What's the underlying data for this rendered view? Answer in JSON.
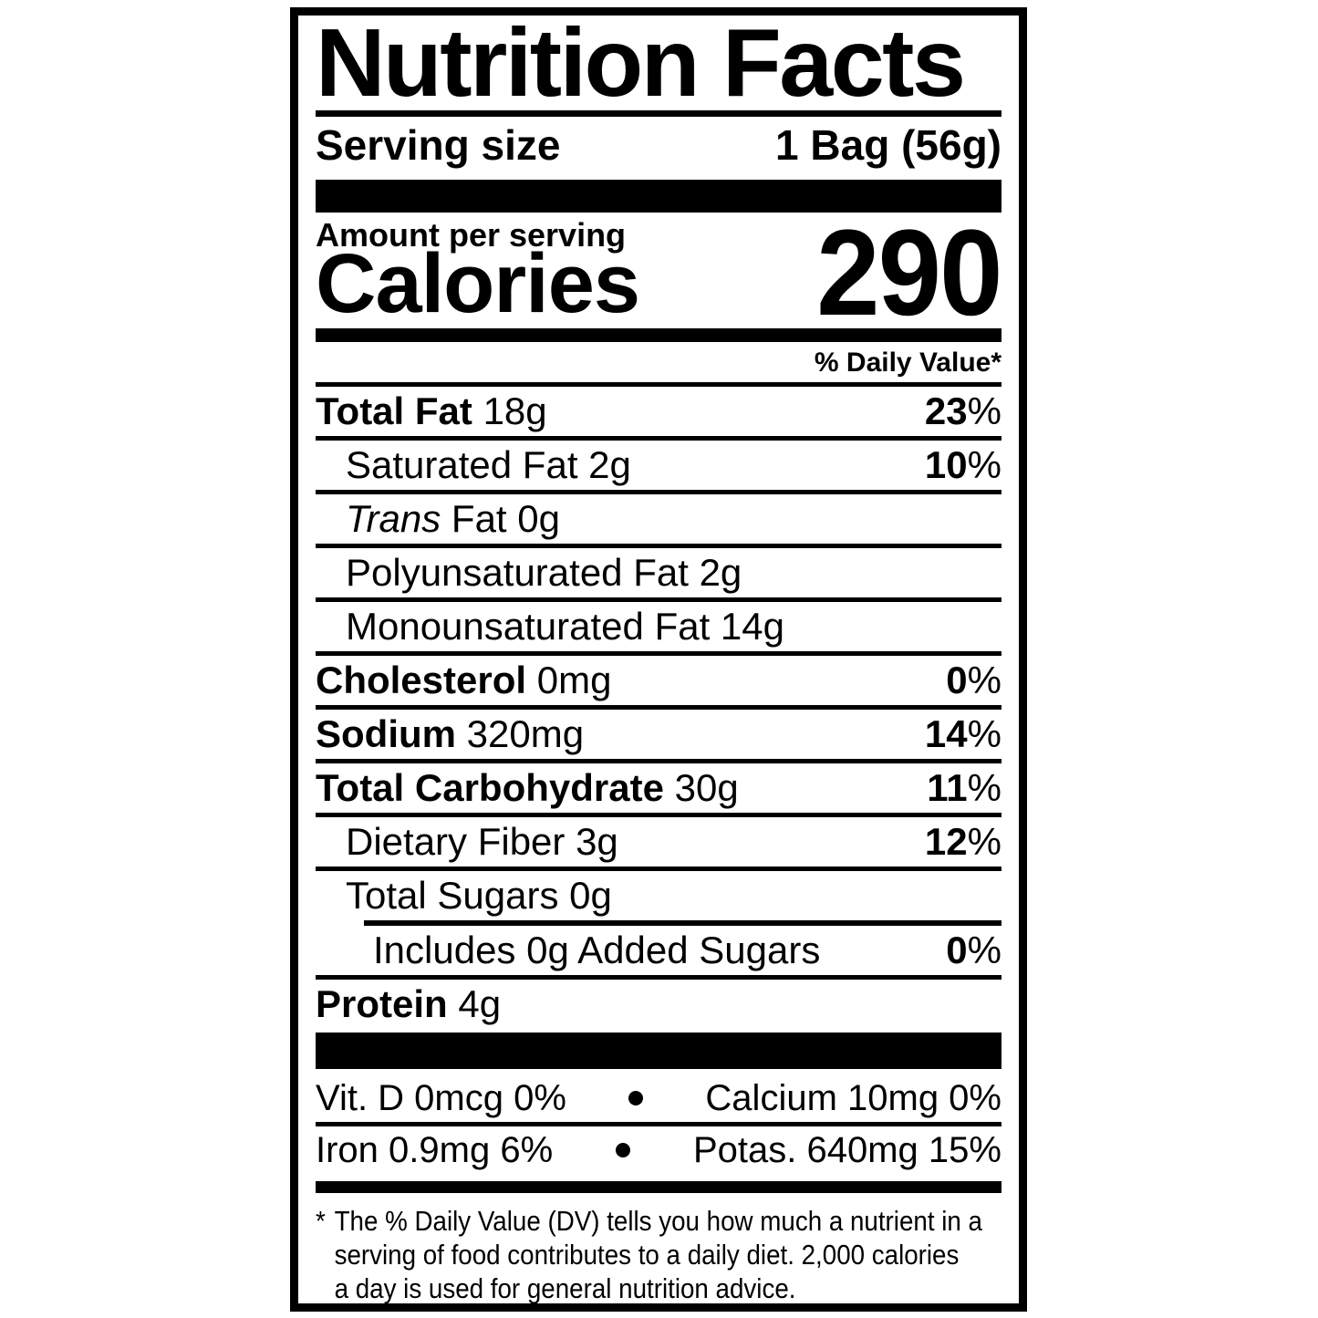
{
  "title": "Nutrition Facts",
  "serving": {
    "label": "Serving size",
    "value": "1 Bag (56g)"
  },
  "calories": {
    "context": "Amount per serving",
    "label": "Calories",
    "value": "290"
  },
  "daily_value_header": "% Daily Value*",
  "strings": {
    "percent": "%"
  },
  "nutrients": [
    {
      "name": "Total Fat",
      "amount": "18g",
      "dv": "23"
    },
    {
      "name": "Saturated Fat",
      "amount": "2g",
      "dv": "10"
    },
    {
      "name": "Trans",
      "amount": "Fat 0g"
    },
    {
      "name": "Polyunsaturated Fat",
      "amount": "2g"
    },
    {
      "name": "Monounsaturated Fat",
      "amount": "14g"
    },
    {
      "name": "Cholesterol",
      "amount": "0mg",
      "dv": "0"
    },
    {
      "name": "Sodium",
      "amount": "320mg",
      "dv": "14"
    },
    {
      "name": "Total Carbohydrate",
      "amount": "30g",
      "dv": "11"
    },
    {
      "name": "Dietary Fiber",
      "amount": "3g",
      "dv": "12"
    },
    {
      "name": "Total Sugars",
      "amount": "0g"
    },
    {
      "name": "Includes 0g Added Sugars",
      "amount": "",
      "dv": "0"
    },
    {
      "name": "Protein",
      "amount": "4g"
    }
  ],
  "micronutrients": [
    {
      "left": "Vit. D 0mcg 0%",
      "right": "Calcium 10mg 0%"
    },
    {
      "left": "Iron 0.9mg 6%",
      "right": "Potas. 640mg 15%"
    }
  ],
  "footnote": {
    "asterisk": "*",
    "lines": [
      "The % Daily Value (DV) tells you how much a nutrient in a",
      "serving of food contributes to a daily diet. 2,000 calories",
      "a day is used for general nutrition advice."
    ]
  }
}
